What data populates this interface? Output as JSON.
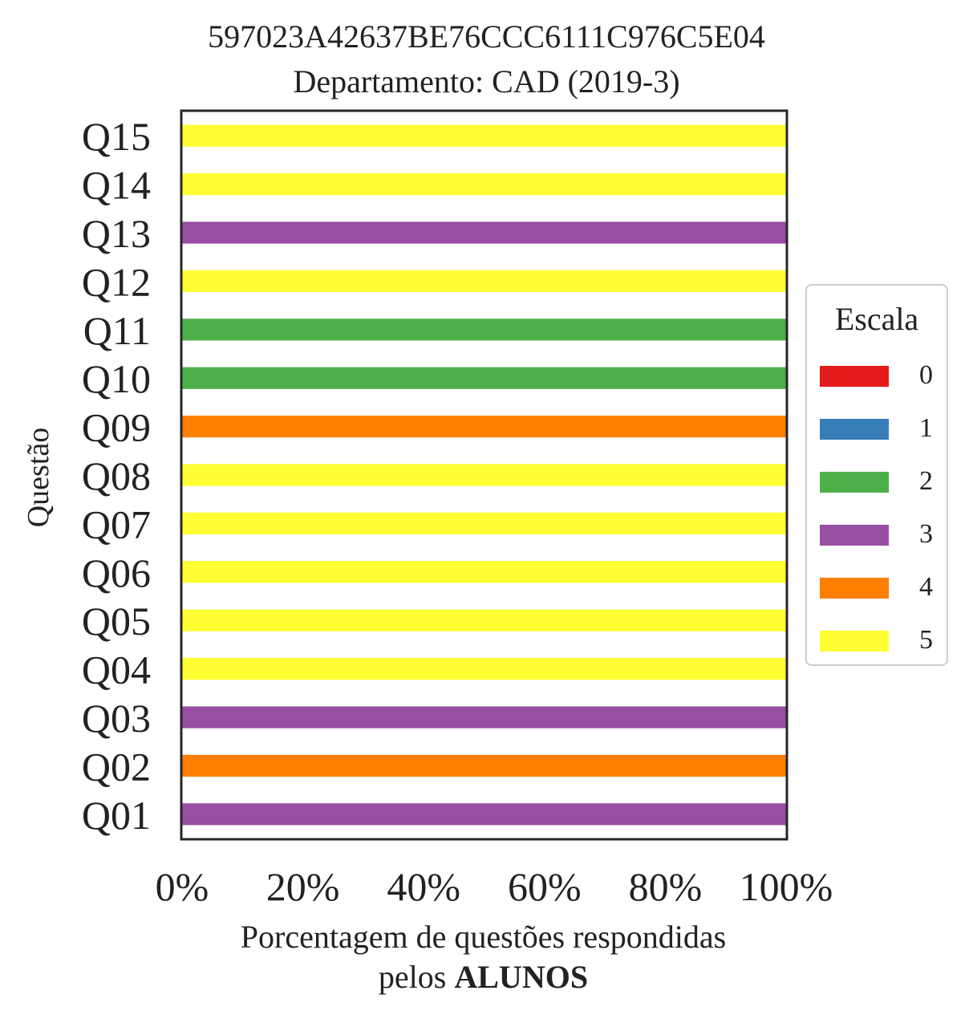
{
  "title_line1": "597023A42637BE76CCC6111C976C5E04",
  "title_line2": "Departamento: CAD (2019-3)",
  "ylabel": "Questão",
  "xlabel_line1": "Porcentagem de questões respondidas",
  "xlabel_line2_prefix": "pelos ",
  "xlabel_line2_bold": "ALUNOS",
  "legend": {
    "title": "Escala",
    "items": [
      {
        "label": "0",
        "color": "#e41a1c"
      },
      {
        "label": "1",
        "color": "#377eb8"
      },
      {
        "label": "2",
        "color": "#4daf4a"
      },
      {
        "label": "3",
        "color": "#984ea3"
      },
      {
        "label": "4",
        "color": "#ff7f00"
      },
      {
        "label": "5",
        "color": "#ffff33"
      }
    ]
  },
  "chart_data": {
    "type": "bar",
    "orientation": "horizontal",
    "stacked": true,
    "categories": [
      "Q01",
      "Q02",
      "Q03",
      "Q04",
      "Q05",
      "Q06",
      "Q07",
      "Q08",
      "Q09",
      "Q10",
      "Q11",
      "Q12",
      "Q13",
      "Q14",
      "Q15"
    ],
    "series": [
      {
        "name": "0",
        "values": [
          0,
          0,
          0,
          0,
          0,
          0,
          0,
          0,
          0,
          0,
          0,
          0,
          0,
          0,
          0
        ]
      },
      {
        "name": "1",
        "values": [
          0,
          0,
          0,
          0,
          0,
          0,
          0,
          0,
          0,
          0,
          0,
          0,
          0,
          0,
          0
        ]
      },
      {
        "name": "2",
        "values": [
          0,
          0,
          0,
          0,
          0,
          0,
          0,
          0,
          0,
          100,
          100,
          0,
          0,
          0,
          0
        ]
      },
      {
        "name": "3",
        "values": [
          100,
          0,
          100,
          0,
          0,
          0,
          0,
          0,
          0,
          0,
          0,
          0,
          100,
          0,
          0
        ]
      },
      {
        "name": "4",
        "values": [
          0,
          100,
          0,
          0,
          0,
          0,
          0,
          0,
          100,
          0,
          0,
          0,
          0,
          0,
          0
        ]
      },
      {
        "name": "5",
        "values": [
          0,
          0,
          0,
          100,
          100,
          100,
          100,
          100,
          0,
          0,
          0,
          100,
          0,
          100,
          100
        ]
      }
    ],
    "xlim": [
      0,
      100
    ],
    "xticks": [
      "0%",
      "20%",
      "40%",
      "60%",
      "80%",
      "100%"
    ],
    "grid": false,
    "legend_position": "right"
  }
}
